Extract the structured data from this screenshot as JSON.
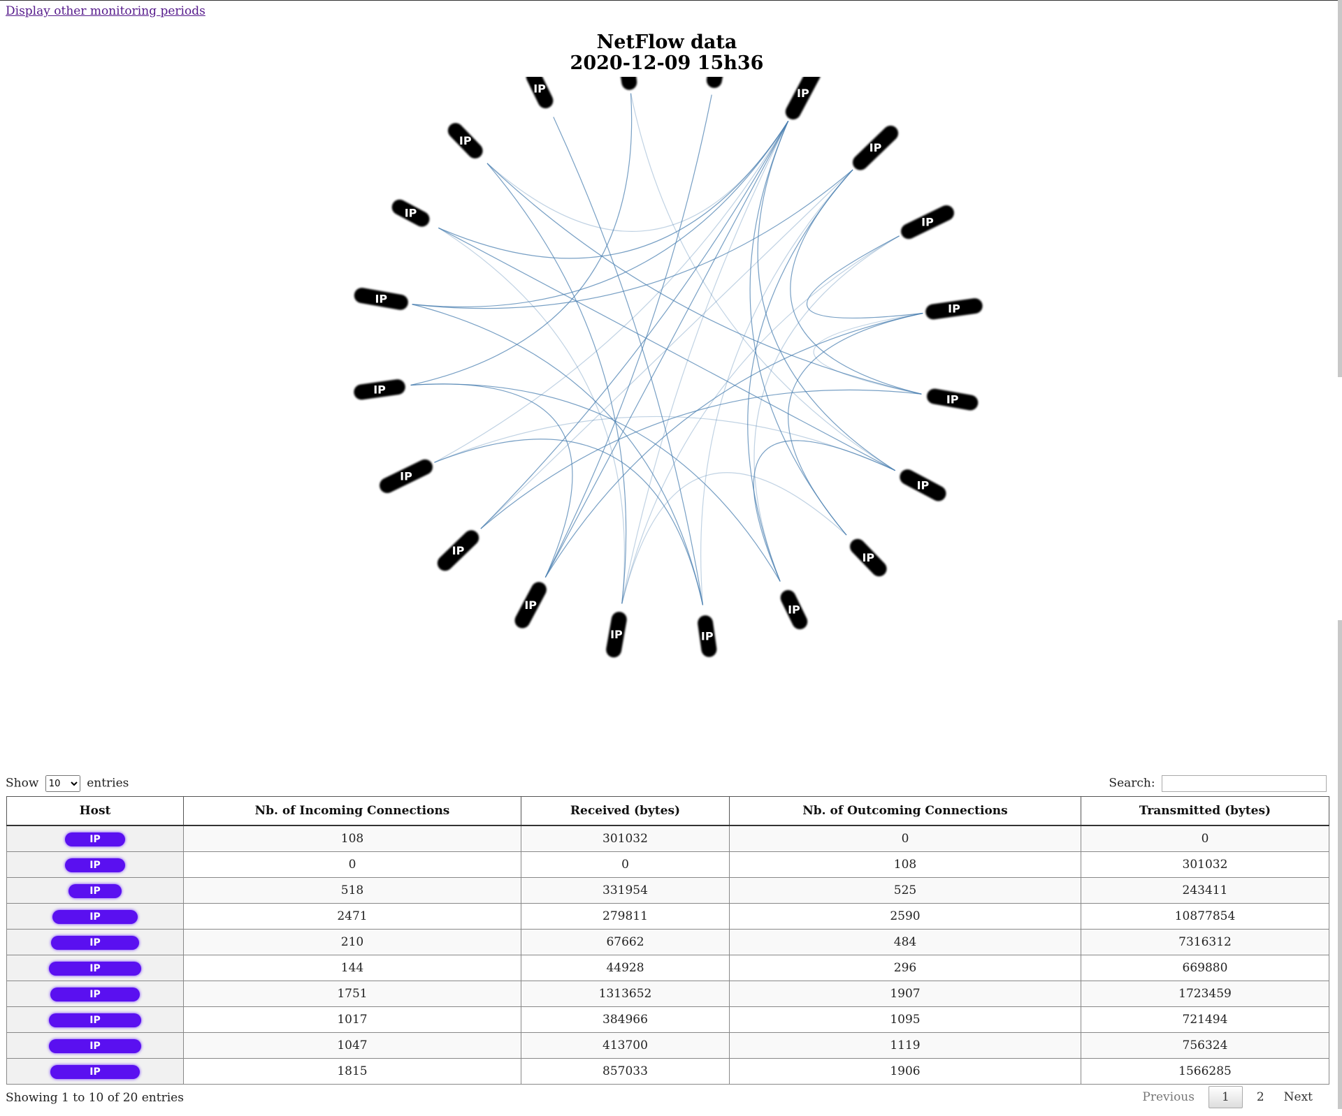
{
  "header": {
    "periods_link": "Display other monitoring periods",
    "title_line1": "NetFlow data",
    "title_line2": "2020-12-09 15h36"
  },
  "graph": {
    "node_label": "IP",
    "node_color": "#000000",
    "link_color": "#4a7fb0",
    "node_count": 20
  },
  "table_controls": {
    "show_label": "Show",
    "entries_label": "entries",
    "page_length": "10",
    "search_label": "Search:",
    "search_value": ""
  },
  "table": {
    "columns": [
      "Host",
      "Nb. of Incoming Connections",
      "Received (bytes)",
      "Nb. of Outcoming Connections",
      "Transmitted (bytes)"
    ],
    "host_pill_color": "#5a10f0",
    "rows": [
      {
        "host": "IP",
        "incoming": "108",
        "received": "301032",
        "outgoing": "0",
        "transmitted": "0"
      },
      {
        "host": "IP",
        "incoming": "0",
        "received": "0",
        "outgoing": "108",
        "transmitted": "301032"
      },
      {
        "host": "IP",
        "incoming": "518",
        "received": "331954",
        "outgoing": "525",
        "transmitted": "243411"
      },
      {
        "host": "IP",
        "incoming": "2471",
        "received": "279811",
        "outgoing": "2590",
        "transmitted": "10877854"
      },
      {
        "host": "IP",
        "incoming": "210",
        "received": "67662",
        "outgoing": "484",
        "transmitted": "7316312"
      },
      {
        "host": "IP",
        "incoming": "144",
        "received": "44928",
        "outgoing": "296",
        "transmitted": "669880"
      },
      {
        "host": "IP",
        "incoming": "1751",
        "received": "1313652",
        "outgoing": "1907",
        "transmitted": "1723459"
      },
      {
        "host": "IP",
        "incoming": "1017",
        "received": "384966",
        "outgoing": "1095",
        "transmitted": "721494"
      },
      {
        "host": "IP",
        "incoming": "1047",
        "received": "413700",
        "outgoing": "1119",
        "transmitted": "756324"
      },
      {
        "host": "IP",
        "incoming": "1815",
        "received": "857033",
        "outgoing": "1906",
        "transmitted": "1566285"
      }
    ]
  },
  "footer": {
    "info": "Showing 1 to 10 of 20 entries",
    "previous": "Previous",
    "pages": [
      "1",
      "2"
    ],
    "current_page": "1",
    "next": "Next"
  }
}
